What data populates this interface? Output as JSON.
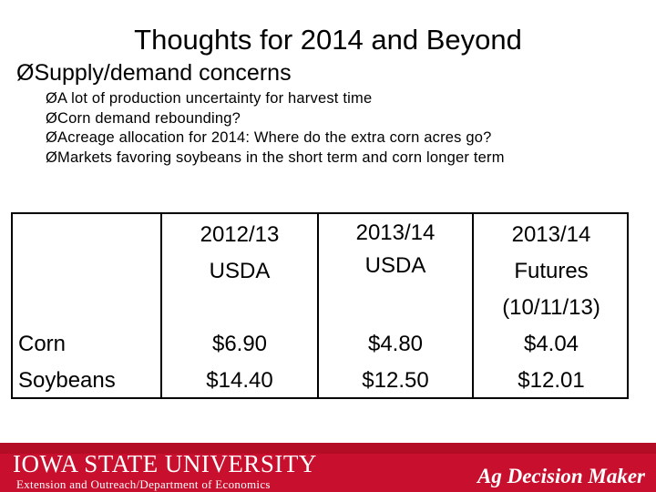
{
  "slide": {
    "title": "Thoughts for 2014 and Beyond",
    "bullet_glyph": "Ø",
    "main_bullet": "Supply/demand concerns",
    "sub_bullets": [
      "A lot of production uncertainty for harvest time",
      "Corn demand rebounding?",
      "Acreage allocation for 2014:  Where do the extra corn acres go?",
      "Markets favoring soybeans in the short term and corn longer term"
    ]
  },
  "table": {
    "columns": [
      {
        "lines": [
          "2012/13",
          "USDA"
        ]
      },
      {
        "lines": [
          "2013/14",
          "USDA"
        ]
      },
      {
        "lines": [
          "2013/14",
          "Futures",
          "(10/11/13)"
        ]
      }
    ],
    "rows": [
      {
        "label": "Corn",
        "values": [
          "$6.90",
          "$4.80",
          "$4.04"
        ]
      },
      {
        "label": "Soybeans",
        "values": [
          "$14.40",
          "$12.50",
          "$12.01"
        ]
      }
    ]
  },
  "footer": {
    "logo_text": "IOWA STATE UNIVERSITY",
    "subtitle": "Extension and Outreach/Department of Economics",
    "brand": "Ag Decision Maker",
    "colors": {
      "primary": "#c8102e",
      "text": "#ffffff"
    }
  }
}
